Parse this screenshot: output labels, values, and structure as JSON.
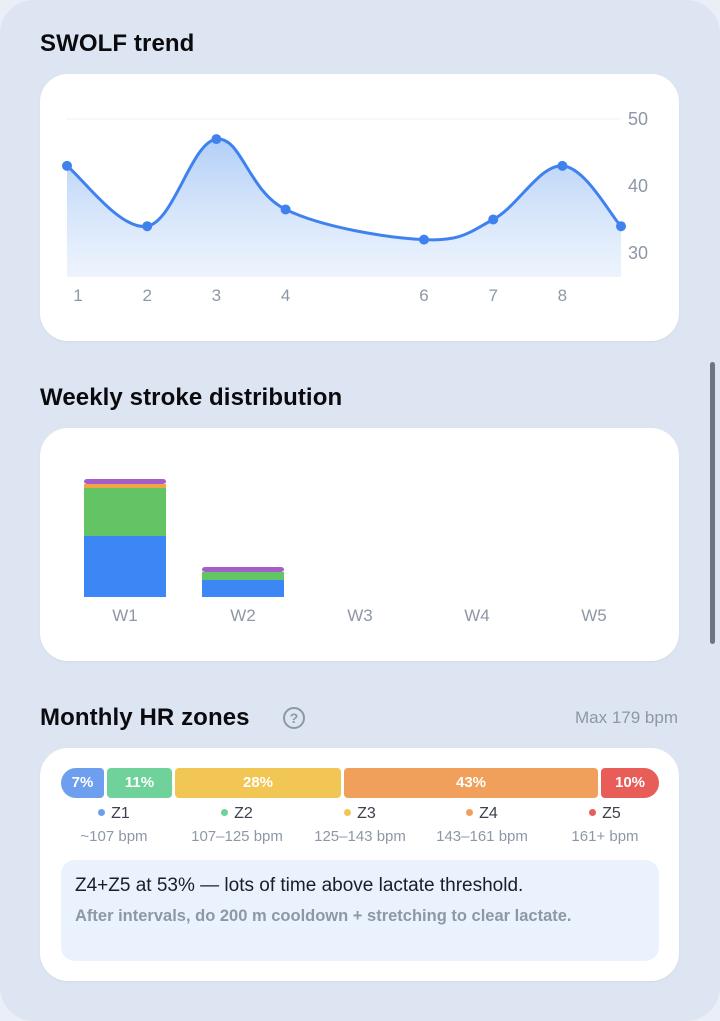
{
  "swolf": {
    "title": "SWOLF trend",
    "y_ticks": [
      "50",
      "40",
      "30"
    ],
    "x_ticks": [
      "1",
      "2",
      "3",
      "4",
      "6",
      "7",
      "8"
    ]
  },
  "strokes": {
    "title": "Weekly stroke distribution",
    "weeks": [
      "W1",
      "W2",
      "W3",
      "W4",
      "W5"
    ]
  },
  "hr": {
    "title": "Monthly HR zones",
    "help": "?",
    "max": "Max 179 bpm",
    "zones": [
      {
        "pct": "7%",
        "name": "Z1",
        "range": "~107 bpm",
        "color": "#6d9fee"
      },
      {
        "pct": "11%",
        "name": "Z2",
        "range": "107–125 bpm",
        "color": "#6fd29a"
      },
      {
        "pct": "28%",
        "name": "Z3",
        "range": "125–143 bpm",
        "color": "#f2c654"
      },
      {
        "pct": "43%",
        "name": "Z4",
        "range": "143–161 bpm",
        "color": "#f0a05a"
      },
      {
        "pct": "10%",
        "name": "Z5",
        "range": "161+ bpm",
        "color": "#e85d57"
      }
    ],
    "insight_main": "Z4+Z5 at 53% — lots of time above lactate threshold.",
    "insight_sub": "After intervals, do 200 m cooldown + stretching to clear lactate."
  },
  "chart_data": [
    {
      "type": "line",
      "title": "SWOLF trend",
      "x": [
        1,
        2,
        3,
        4,
        6,
        7,
        8,
        9
      ],
      "values": [
        43,
        34,
        47,
        36.5,
        32,
        35,
        43,
        34
      ],
      "xticks": [
        "1",
        "2",
        "3",
        "4",
        "6",
        "7",
        "8"
      ],
      "yticks": [
        50,
        40,
        30
      ],
      "ylim": [
        26,
        50
      ],
      "color": "#3f82ef"
    },
    {
      "type": "bar",
      "stacked": true,
      "title": "Weekly stroke distribution",
      "categories": [
        "W1",
        "W2",
        "W3",
        "W4",
        "W5"
      ],
      "series": [
        {
          "values": [
            61,
            17,
            0,
            0,
            0
          ],
          "color": "#3c86f5"
        },
        {
          "values": [
            48,
            8,
            0,
            0,
            0
          ],
          "color": "#63c466"
        },
        {
          "values": [
            4,
            0,
            0,
            0,
            0
          ],
          "color": "#f2a444"
        },
        {
          "values": [
            5,
            5,
            0,
            0,
            0
          ],
          "color": "#a35ec9"
        }
      ]
    }
  ]
}
